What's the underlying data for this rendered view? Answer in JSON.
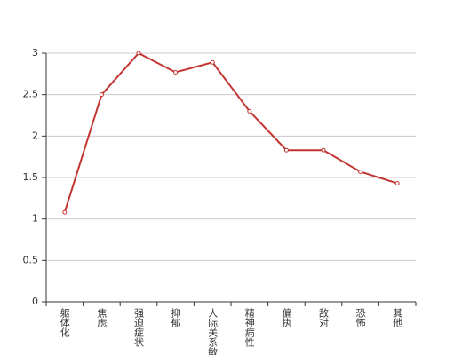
{
  "chart_data": {
    "type": "line",
    "categories": [
      "躯体化",
      "焦虑",
      "强迫症状",
      "抑郁",
      "人际关系敏感",
      "精神病性",
      "偏执",
      "敌对",
      "恐怖",
      "其他"
    ],
    "series": [
      {
        "color": "#c23531",
        "values": [
          1.08,
          2.5,
          3.0,
          2.77,
          2.89,
          2.3,
          1.83,
          1.83,
          1.57,
          1.43
        ]
      }
    ],
    "ylim": [
      0,
      3
    ],
    "yticks": [
      0,
      0.5,
      1,
      1.5,
      2,
      2.5,
      3
    ],
    "grid": true
  }
}
